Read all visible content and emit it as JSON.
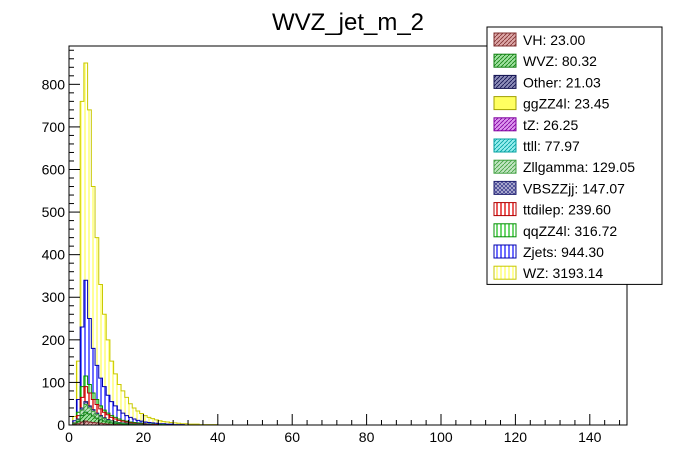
{
  "chart_data": {
    "type": "bar",
    "title": "WVZ_jet_m_2",
    "xlabel": "",
    "ylabel": "",
    "xlim": [
      0,
      150
    ],
    "ylim": [
      0,
      890
    ],
    "x_ticks": [
      0,
      20,
      40,
      60,
      80,
      100,
      120,
      140
    ],
    "y_ticks": [
      0,
      100,
      200,
      300,
      400,
      500,
      600,
      700,
      800
    ],
    "bin_width": 1,
    "stacked": false,
    "legend_position": "top-right",
    "series": [
      {
        "name": "WZ: 3193.14",
        "fill": "#ffff60",
        "stroke": "#c8c800",
        "pattern": "vlines",
        "values": [
          0,
          20,
          150,
          760,
          850,
          740,
          560,
          440,
          330,
          260,
          200,
          150,
          120,
          95,
          80,
          65,
          50,
          40,
          33,
          27,
          22,
          18,
          15,
          12,
          10,
          8,
          7,
          6,
          5,
          4,
          3,
          3,
          2,
          2,
          2,
          1,
          1,
          1,
          1,
          1
        ]
      },
      {
        "name": "Zjets: 944.30",
        "fill": "#1e1eff",
        "stroke": "#0000aa",
        "pattern": "vlines",
        "values": [
          0,
          10,
          60,
          230,
          340,
          250,
          180,
          140,
          110,
          90,
          70,
          55,
          45,
          35,
          28,
          22,
          18,
          14,
          11,
          9,
          7,
          6,
          5,
          4,
          3,
          3,
          2,
          2,
          1,
          1,
          1
        ]
      },
      {
        "name": "qqZZ4l: 316.72",
        "fill": "#20c020",
        "stroke": "#009000",
        "pattern": "vlines",
        "values": [
          0,
          5,
          30,
          90,
          115,
          95,
          75,
          60,
          45,
          35,
          28,
          22,
          18,
          14,
          11,
          9,
          7,
          6,
          5,
          4,
          3,
          2,
          2,
          1,
          1,
          1
        ]
      },
      {
        "name": "ttdilep: 239.60",
        "fill": "#e00000",
        "stroke": "#b00000",
        "pattern": "vlines",
        "values": [
          0,
          4,
          22,
          65,
          90,
          75,
          60,
          48,
          38,
          30,
          24,
          18,
          14,
          11,
          9,
          7,
          5,
          4,
          3,
          2,
          2,
          1,
          1,
          1
        ]
      },
      {
        "name": "VBSZZjj: 147.07",
        "fill": "#404090",
        "stroke": "#202070",
        "pattern": "grid",
        "values": [
          0,
          3,
          14,
          40,
          55,
          45,
          36,
          28,
          22,
          17,
          13,
          10,
          8,
          6,
          5,
          4,
          3,
          2,
          2,
          1,
          1,
          1
        ]
      },
      {
        "name": "Zllgamma: 129.05",
        "fill": "#90d090",
        "stroke": "#40a040",
        "pattern": "diag",
        "values": [
          0,
          3,
          12,
          35,
          48,
          40,
          32,
          25,
          19,
          15,
          11,
          9,
          7,
          5,
          4,
          3,
          2,
          2,
          1,
          1
        ]
      },
      {
        "name": "ttll: 77.97",
        "fill": "#40e0e0",
        "stroke": "#00a0a0",
        "pattern": "diag",
        "values": [
          0,
          2,
          8,
          22,
          30,
          25,
          20,
          15,
          12,
          9,
          7,
          5,
          4,
          3,
          2,
          2,
          1,
          1
        ]
      },
      {
        "name": "tZ: 26.25",
        "fill": "#c040e0",
        "stroke": "#8000a0",
        "pattern": "diag",
        "values": [
          0,
          1,
          3,
          8,
          10,
          8,
          7,
          5,
          4,
          3,
          2,
          2,
          1,
          1
        ]
      },
      {
        "name": "ggZZ4l: 23.45",
        "fill": "#ffff60",
        "stroke": "#a0a000",
        "pattern": "solid",
        "values": [
          0,
          1,
          3,
          7,
          9,
          7,
          6,
          5,
          4,
          3,
          2,
          2,
          1,
          1
        ]
      },
      {
        "name": "Other: 21.03",
        "fill": "#303080",
        "stroke": "#101050",
        "pattern": "diag",
        "values": [
          0,
          1,
          3,
          6,
          8,
          7,
          5,
          4,
          3,
          3,
          2,
          1,
          1,
          1
        ]
      },
      {
        "name": "WVZ: 80.32",
        "fill": "#50c850",
        "stroke": "#108010",
        "pattern": "diag",
        "values": [
          0,
          2,
          8,
          22,
          30,
          26,
          21,
          16,
          12,
          9,
          7,
          5,
          4,
          3,
          2,
          2,
          1,
          1
        ]
      },
      {
        "name": "VH: 23.00",
        "fill": "#c06060",
        "stroke": "#803030",
        "pattern": "diag",
        "values": [
          0,
          1,
          3,
          7,
          9,
          7,
          6,
          5,
          4,
          3,
          2,
          1,
          1,
          1
        ]
      }
    ],
    "legend_order": [
      "VH: 23.00",
      "WVZ: 80.32",
      "Other: 21.03",
      "ggZZ4l: 23.45",
      "tZ: 26.25",
      "ttll: 77.97",
      "Zllgamma: 129.05",
      "VBSZZjj: 147.07",
      "ttdilep: 239.60",
      "qqZZ4l: 316.72",
      "Zjets: 944.30",
      "WZ: 3193.14"
    ]
  }
}
